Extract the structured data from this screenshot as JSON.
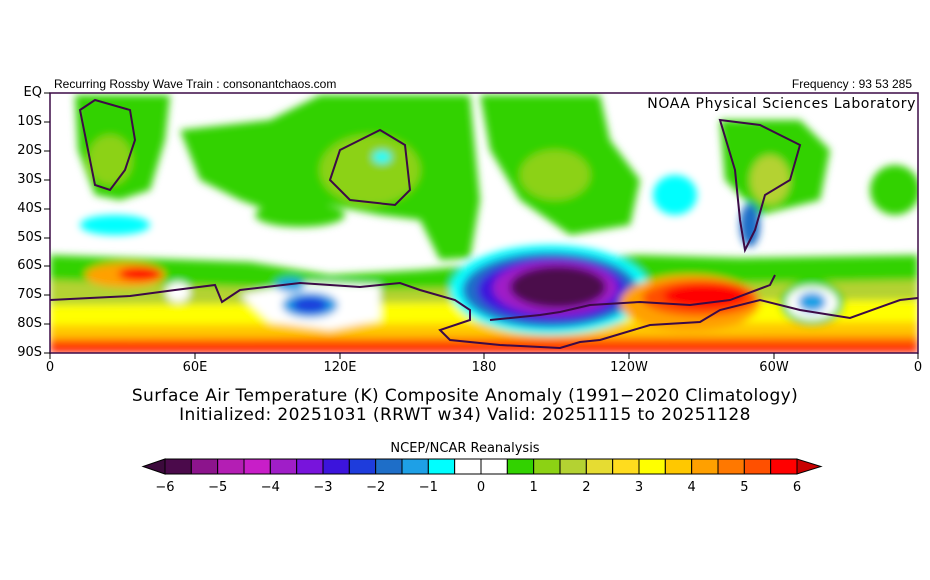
{
  "header": {
    "left": "Recurring Rossby Wave Train : consonantchaos.com",
    "right": "Frequency : 93 53 285",
    "lab": "NOAA Physical Sciences Laboratory"
  },
  "map": {
    "lat_labels": [
      "EQ",
      "10S",
      "20S",
      "30S",
      "40S",
      "50S",
      "60S",
      "70S",
      "80S",
      "90S"
    ],
    "lon_labels": [
      "0",
      "60E",
      "120E",
      "180",
      "120W",
      "60W",
      "0"
    ],
    "coast_color": "#3c0a46"
  },
  "title": {
    "line1": "Surface Air Temperature (K) Composite Anomaly (1991−2020 Climatology)",
    "line2": "Initialized: 20251031 (RRWT w34) Valid: 20251115 to 20251128"
  },
  "colorbar": {
    "label": "NCEP/NCAR Reanalysis",
    "min": -6,
    "max": 6,
    "step": 0.5,
    "tick_labels": [
      "−6",
      "−5",
      "−4",
      "−3",
      "−2",
      "−1",
      "0",
      "1",
      "2",
      "3",
      "4",
      "5",
      "6"
    ],
    "colors": [
      "#4b0a4b",
      "#8c148c",
      "#b41eb4",
      "#c81ec8",
      "#a01ec8",
      "#7814dc",
      "#3c14dc",
      "#1e3cdc",
      "#1e6ec8",
      "#1ea0e6",
      "#00ffff",
      "#ffffff",
      "#ffffff",
      "#32d200",
      "#8cd214",
      "#b4d232",
      "#e6dc32",
      "#ffdc1e",
      "#ffff00",
      "#ffc800",
      "#ffa000",
      "#ff7800",
      "#ff5000",
      "#ff0000"
    ],
    "under_color": "#3c0a3c",
    "over_color": "#c80000"
  }
}
